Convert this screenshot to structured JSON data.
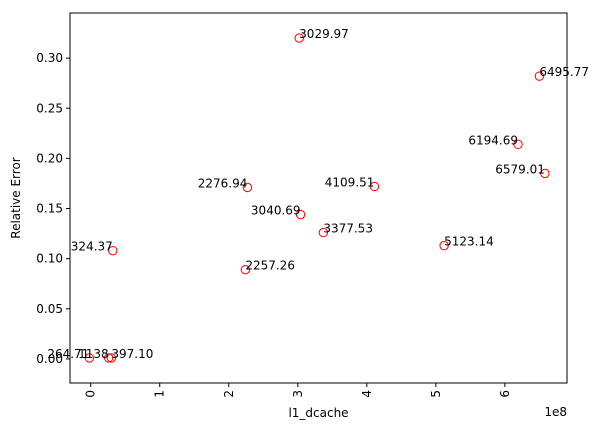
{
  "chart_data": {
    "type": "scatter",
    "title": "",
    "xlabel": "l1_dcache",
    "ylabel": "Relative Error",
    "x_offset_label": "1e8",
    "x_scale": 100000000,
    "xlim": [
      -0.3,
      6.9
    ],
    "ylim": [
      -0.024,
      0.345
    ],
    "x_ticks": [
      0,
      1,
      2,
      3,
      4,
      5,
      6
    ],
    "x_tick_labels": [
      "0",
      "1",
      "2",
      "3",
      "4",
      "5",
      "6"
    ],
    "y_ticks": [
      0.0,
      0.05,
      0.1,
      0.15,
      0.2,
      0.25,
      0.3
    ],
    "y_tick_labels": [
      "0.00",
      "0.05",
      "0.10",
      "0.15",
      "0.20",
      "0.25",
      "0.30"
    ],
    "grid": false,
    "marker_color": "#ff0000",
    "points": [
      {
        "x": -0.02,
        "y": 0.001,
        "label": "264.71",
        "align": "right"
      },
      {
        "x": 0.26,
        "y": 0.001,
        "label": "1138",
        "align": "right"
      },
      {
        "x": 0.3,
        "y": 0.001,
        "label": "397.10",
        "align": "left"
      },
      {
        "x": 0.32,
        "y": 0.108,
        "label": "324.37",
        "align": "right"
      },
      {
        "x": 2.24,
        "y": 0.089,
        "label": "2257.26",
        "align": "left"
      },
      {
        "x": 2.27,
        "y": 0.171,
        "label": "2276.94",
        "align": "right"
      },
      {
        "x": 3.02,
        "y": 0.32,
        "label": "3029.97",
        "align": "left"
      },
      {
        "x": 3.04,
        "y": 0.144,
        "label": "3040.69",
        "align": "right"
      },
      {
        "x": 3.37,
        "y": 0.126,
        "label": "3377.53",
        "align": "left"
      },
      {
        "x": 4.11,
        "y": 0.172,
        "label": "4109.51",
        "align": "right"
      },
      {
        "x": 5.12,
        "y": 0.113,
        "label": "5123.14",
        "align": "left"
      },
      {
        "x": 6.19,
        "y": 0.214,
        "label": "6194.69",
        "align": "right"
      },
      {
        "x": 6.5,
        "y": 0.282,
        "label": "6495.77",
        "align": "left"
      },
      {
        "x": 6.58,
        "y": 0.185,
        "label": "6579.01",
        "align": "right"
      }
    ]
  }
}
